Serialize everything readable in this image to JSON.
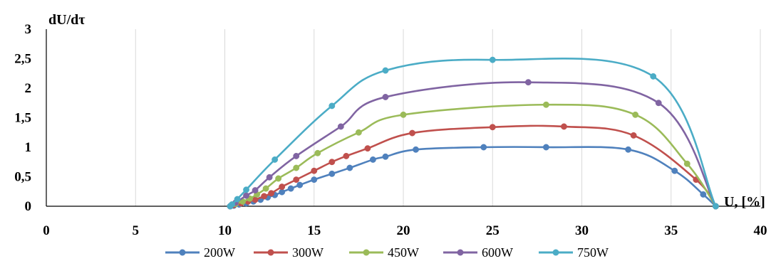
{
  "chart_data": {
    "type": "line",
    "title": "",
    "ylabel": "dU/dτ",
    "xlabel": "U, [%]",
    "xlim": [
      0,
      40
    ],
    "ylim": [
      0,
      3
    ],
    "x_ticks": [
      0,
      5,
      10,
      15,
      20,
      25,
      30,
      35,
      40
    ],
    "y_ticks": [
      0,
      0.5,
      1,
      1.5,
      2,
      2.5,
      3
    ],
    "x_tick_labels": [
      "0",
      "5",
      "10",
      "15",
      "20",
      "25",
      "30",
      "35",
      "40"
    ],
    "y_tick_labels": [
      "0",
      "0,5",
      "1",
      "1,5",
      "2",
      "2,5",
      "3"
    ],
    "grid": "vertical",
    "legend_position": "bottom",
    "series": [
      {
        "name": "200W",
        "color": "#4f81bd",
        "points": [
          [
            10.3,
            0.0
          ],
          [
            10.5,
            0.01
          ],
          [
            10.8,
            0.03
          ],
          [
            11.2,
            0.05
          ],
          [
            11.6,
            0.08
          ],
          [
            12.0,
            0.11
          ],
          [
            12.4,
            0.15
          ],
          [
            12.8,
            0.19
          ],
          [
            13.2,
            0.24
          ],
          [
            13.7,
            0.3
          ],
          [
            14.2,
            0.36
          ],
          [
            15.0,
            0.45
          ],
          [
            16.0,
            0.55
          ],
          [
            17.0,
            0.65
          ],
          [
            18.3,
            0.79
          ],
          [
            19.0,
            0.84
          ],
          [
            20.7,
            0.96
          ],
          [
            24.5,
            1.0
          ],
          [
            28.0,
            1.0
          ],
          [
            32.6,
            0.96
          ],
          [
            35.2,
            0.6
          ],
          [
            36.8,
            0.2
          ],
          [
            37.5,
            0.0
          ]
        ]
      },
      {
        "name": "300W",
        "color": "#c0504d",
        "points": [
          [
            10.3,
            0.0
          ],
          [
            10.5,
            0.02
          ],
          [
            10.9,
            0.05
          ],
          [
            11.3,
            0.08
          ],
          [
            11.7,
            0.11
          ],
          [
            12.2,
            0.17
          ],
          [
            12.6,
            0.22
          ],
          [
            13.2,
            0.33
          ],
          [
            14.0,
            0.45
          ],
          [
            15.0,
            0.6
          ],
          [
            16.0,
            0.75
          ],
          [
            16.8,
            0.85
          ],
          [
            18.0,
            0.98
          ],
          [
            20.5,
            1.24
          ],
          [
            25.0,
            1.34
          ],
          [
            29.0,
            1.35
          ],
          [
            32.9,
            1.2
          ],
          [
            36.4,
            0.45
          ],
          [
            37.5,
            0.0
          ]
        ]
      },
      {
        "name": "450W",
        "color": "#9bbb59",
        "points": [
          [
            10.3,
            0.0
          ],
          [
            10.6,
            0.04
          ],
          [
            11.0,
            0.08
          ],
          [
            11.4,
            0.13
          ],
          [
            11.8,
            0.2
          ],
          [
            12.3,
            0.3
          ],
          [
            13.0,
            0.47
          ],
          [
            14.0,
            0.65
          ],
          [
            15.2,
            0.9
          ],
          [
            17.5,
            1.25
          ],
          [
            20.0,
            1.55
          ],
          [
            28.0,
            1.72
          ],
          [
            33.0,
            1.55
          ],
          [
            35.9,
            0.72
          ],
          [
            37.5,
            0.0
          ]
        ]
      },
      {
        "name": "600W",
        "color": "#8064a2",
        "points": [
          [
            10.3,
            0.0
          ],
          [
            10.6,
            0.06
          ],
          [
            11.2,
            0.18
          ],
          [
            11.7,
            0.27
          ],
          [
            12.5,
            0.49
          ],
          [
            14.0,
            0.85
          ],
          [
            16.5,
            1.35
          ],
          [
            19.0,
            1.85
          ],
          [
            27.0,
            2.1
          ],
          [
            34.3,
            1.75
          ],
          [
            37.5,
            0.0
          ]
        ]
      },
      {
        "name": "750W",
        "color": "#4bacc6",
        "points": [
          [
            10.3,
            0.0
          ],
          [
            10.4,
            0.03
          ],
          [
            10.7,
            0.12
          ],
          [
            11.2,
            0.28
          ],
          [
            12.8,
            0.79
          ],
          [
            16.0,
            1.7
          ],
          [
            19.0,
            2.3
          ],
          [
            25.0,
            2.48
          ],
          [
            34.0,
            2.2
          ],
          [
            37.5,
            0.0
          ]
        ]
      }
    ]
  }
}
